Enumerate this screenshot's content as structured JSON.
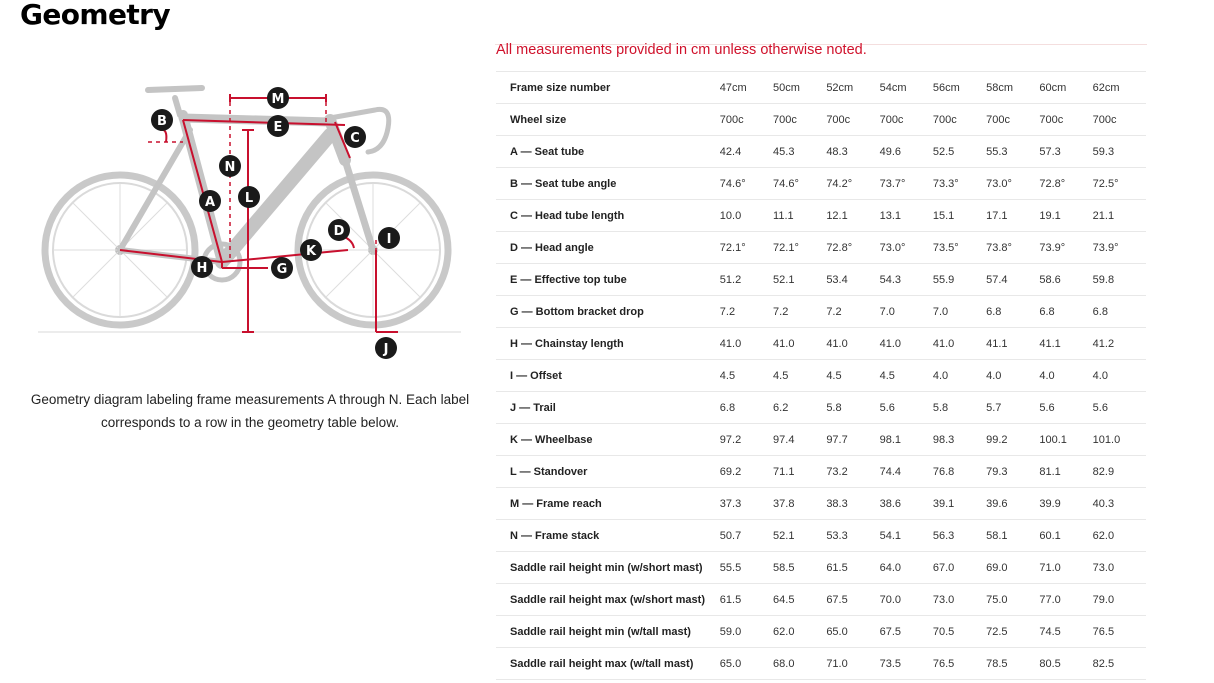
{
  "page": {
    "title": "Geometry",
    "note": "All measurements provided in cm unless otherwise noted.",
    "caption": "Geometry diagram labeling frame measurements A through N. Each label corresponds to a row in the geometry table below."
  },
  "colors": {
    "accent_red": "#c8102e",
    "note_red": "#d0112b",
    "bike_gray": "#cfcfcf",
    "badge": "#1a1a1a"
  },
  "diagram": {
    "labels": [
      "M",
      "B",
      "E",
      "C",
      "N",
      "L",
      "A",
      "D",
      "I",
      "K",
      "H",
      "G",
      "J"
    ]
  },
  "table": {
    "header": {
      "label": "Frame size number",
      "values": [
        "47cm",
        "50cm",
        "52cm",
        "54cm",
        "56cm",
        "58cm",
        "60cm",
        "62cm"
      ]
    },
    "rows": [
      {
        "label": "Wheel size",
        "values": [
          "700c",
          "700c",
          "700c",
          "700c",
          "700c",
          "700c",
          "700c",
          "700c"
        ]
      },
      {
        "label": "A — Seat tube",
        "values": [
          "42.4",
          "45.3",
          "48.3",
          "49.6",
          "52.5",
          "55.3",
          "57.3",
          "59.3"
        ]
      },
      {
        "label": "B — Seat tube angle",
        "values": [
          "74.6°",
          "74.6°",
          "74.2°",
          "73.7°",
          "73.3°",
          "73.0°",
          "72.8°",
          "72.5°"
        ]
      },
      {
        "label": "C — Head tube length",
        "values": [
          "10.0",
          "11.1",
          "12.1",
          "13.1",
          "15.1",
          "17.1",
          "19.1",
          "21.1"
        ]
      },
      {
        "label": "D — Head angle",
        "values": [
          "72.1°",
          "72.1°",
          "72.8°",
          "73.0°",
          "73.5°",
          "73.8°",
          "73.9°",
          "73.9°"
        ]
      },
      {
        "label": "E — Effective top tube",
        "values": [
          "51.2",
          "52.1",
          "53.4",
          "54.3",
          "55.9",
          "57.4",
          "58.6",
          "59.8"
        ]
      },
      {
        "label": "G — Bottom bracket drop",
        "values": [
          "7.2",
          "7.2",
          "7.2",
          "7.0",
          "7.0",
          "6.8",
          "6.8",
          "6.8"
        ]
      },
      {
        "label": "H — Chainstay length",
        "values": [
          "41.0",
          "41.0",
          "41.0",
          "41.0",
          "41.0",
          "41.1",
          "41.1",
          "41.2"
        ]
      },
      {
        "label": "I — Offset",
        "values": [
          "4.5",
          "4.5",
          "4.5",
          "4.5",
          "4.0",
          "4.0",
          "4.0",
          "4.0"
        ]
      },
      {
        "label": "J — Trail",
        "values": [
          "6.8",
          "6.2",
          "5.8",
          "5.6",
          "5.8",
          "5.7",
          "5.6",
          "5.6"
        ]
      },
      {
        "label": "K — Wheelbase",
        "values": [
          "97.2",
          "97.4",
          "97.7",
          "98.1",
          "98.3",
          "99.2",
          "100.1",
          "101.0"
        ]
      },
      {
        "label": "L — Standover",
        "values": [
          "69.2",
          "71.1",
          "73.2",
          "74.4",
          "76.8",
          "79.3",
          "81.1",
          "82.9"
        ]
      },
      {
        "label": "M — Frame reach",
        "values": [
          "37.3",
          "37.8",
          "38.3",
          "38.6",
          "39.1",
          "39.6",
          "39.9",
          "40.3"
        ]
      },
      {
        "label": "N — Frame stack",
        "values": [
          "50.7",
          "52.1",
          "53.3",
          "54.1",
          "56.3",
          "58.1",
          "60.1",
          "62.0"
        ]
      },
      {
        "label": "Saddle rail height min (w/short mast)",
        "values": [
          "55.5",
          "58.5",
          "61.5",
          "64.0",
          "67.0",
          "69.0",
          "71.0",
          "73.0"
        ]
      },
      {
        "label": "Saddle rail height max (w/short mast)",
        "values": [
          "61.5",
          "64.5",
          "67.5",
          "70.0",
          "73.0",
          "75.0",
          "77.0",
          "79.0"
        ]
      },
      {
        "label": "Saddle rail height min (w/tall mast)",
        "values": [
          "59.0",
          "62.0",
          "65.0",
          "67.5",
          "70.5",
          "72.5",
          "74.5",
          "76.5"
        ]
      },
      {
        "label": "Saddle rail height max (w/tall mast)",
        "values": [
          "65.0",
          "68.0",
          "71.0",
          "73.5",
          "76.5",
          "78.5",
          "80.5",
          "82.5"
        ]
      }
    ]
  }
}
